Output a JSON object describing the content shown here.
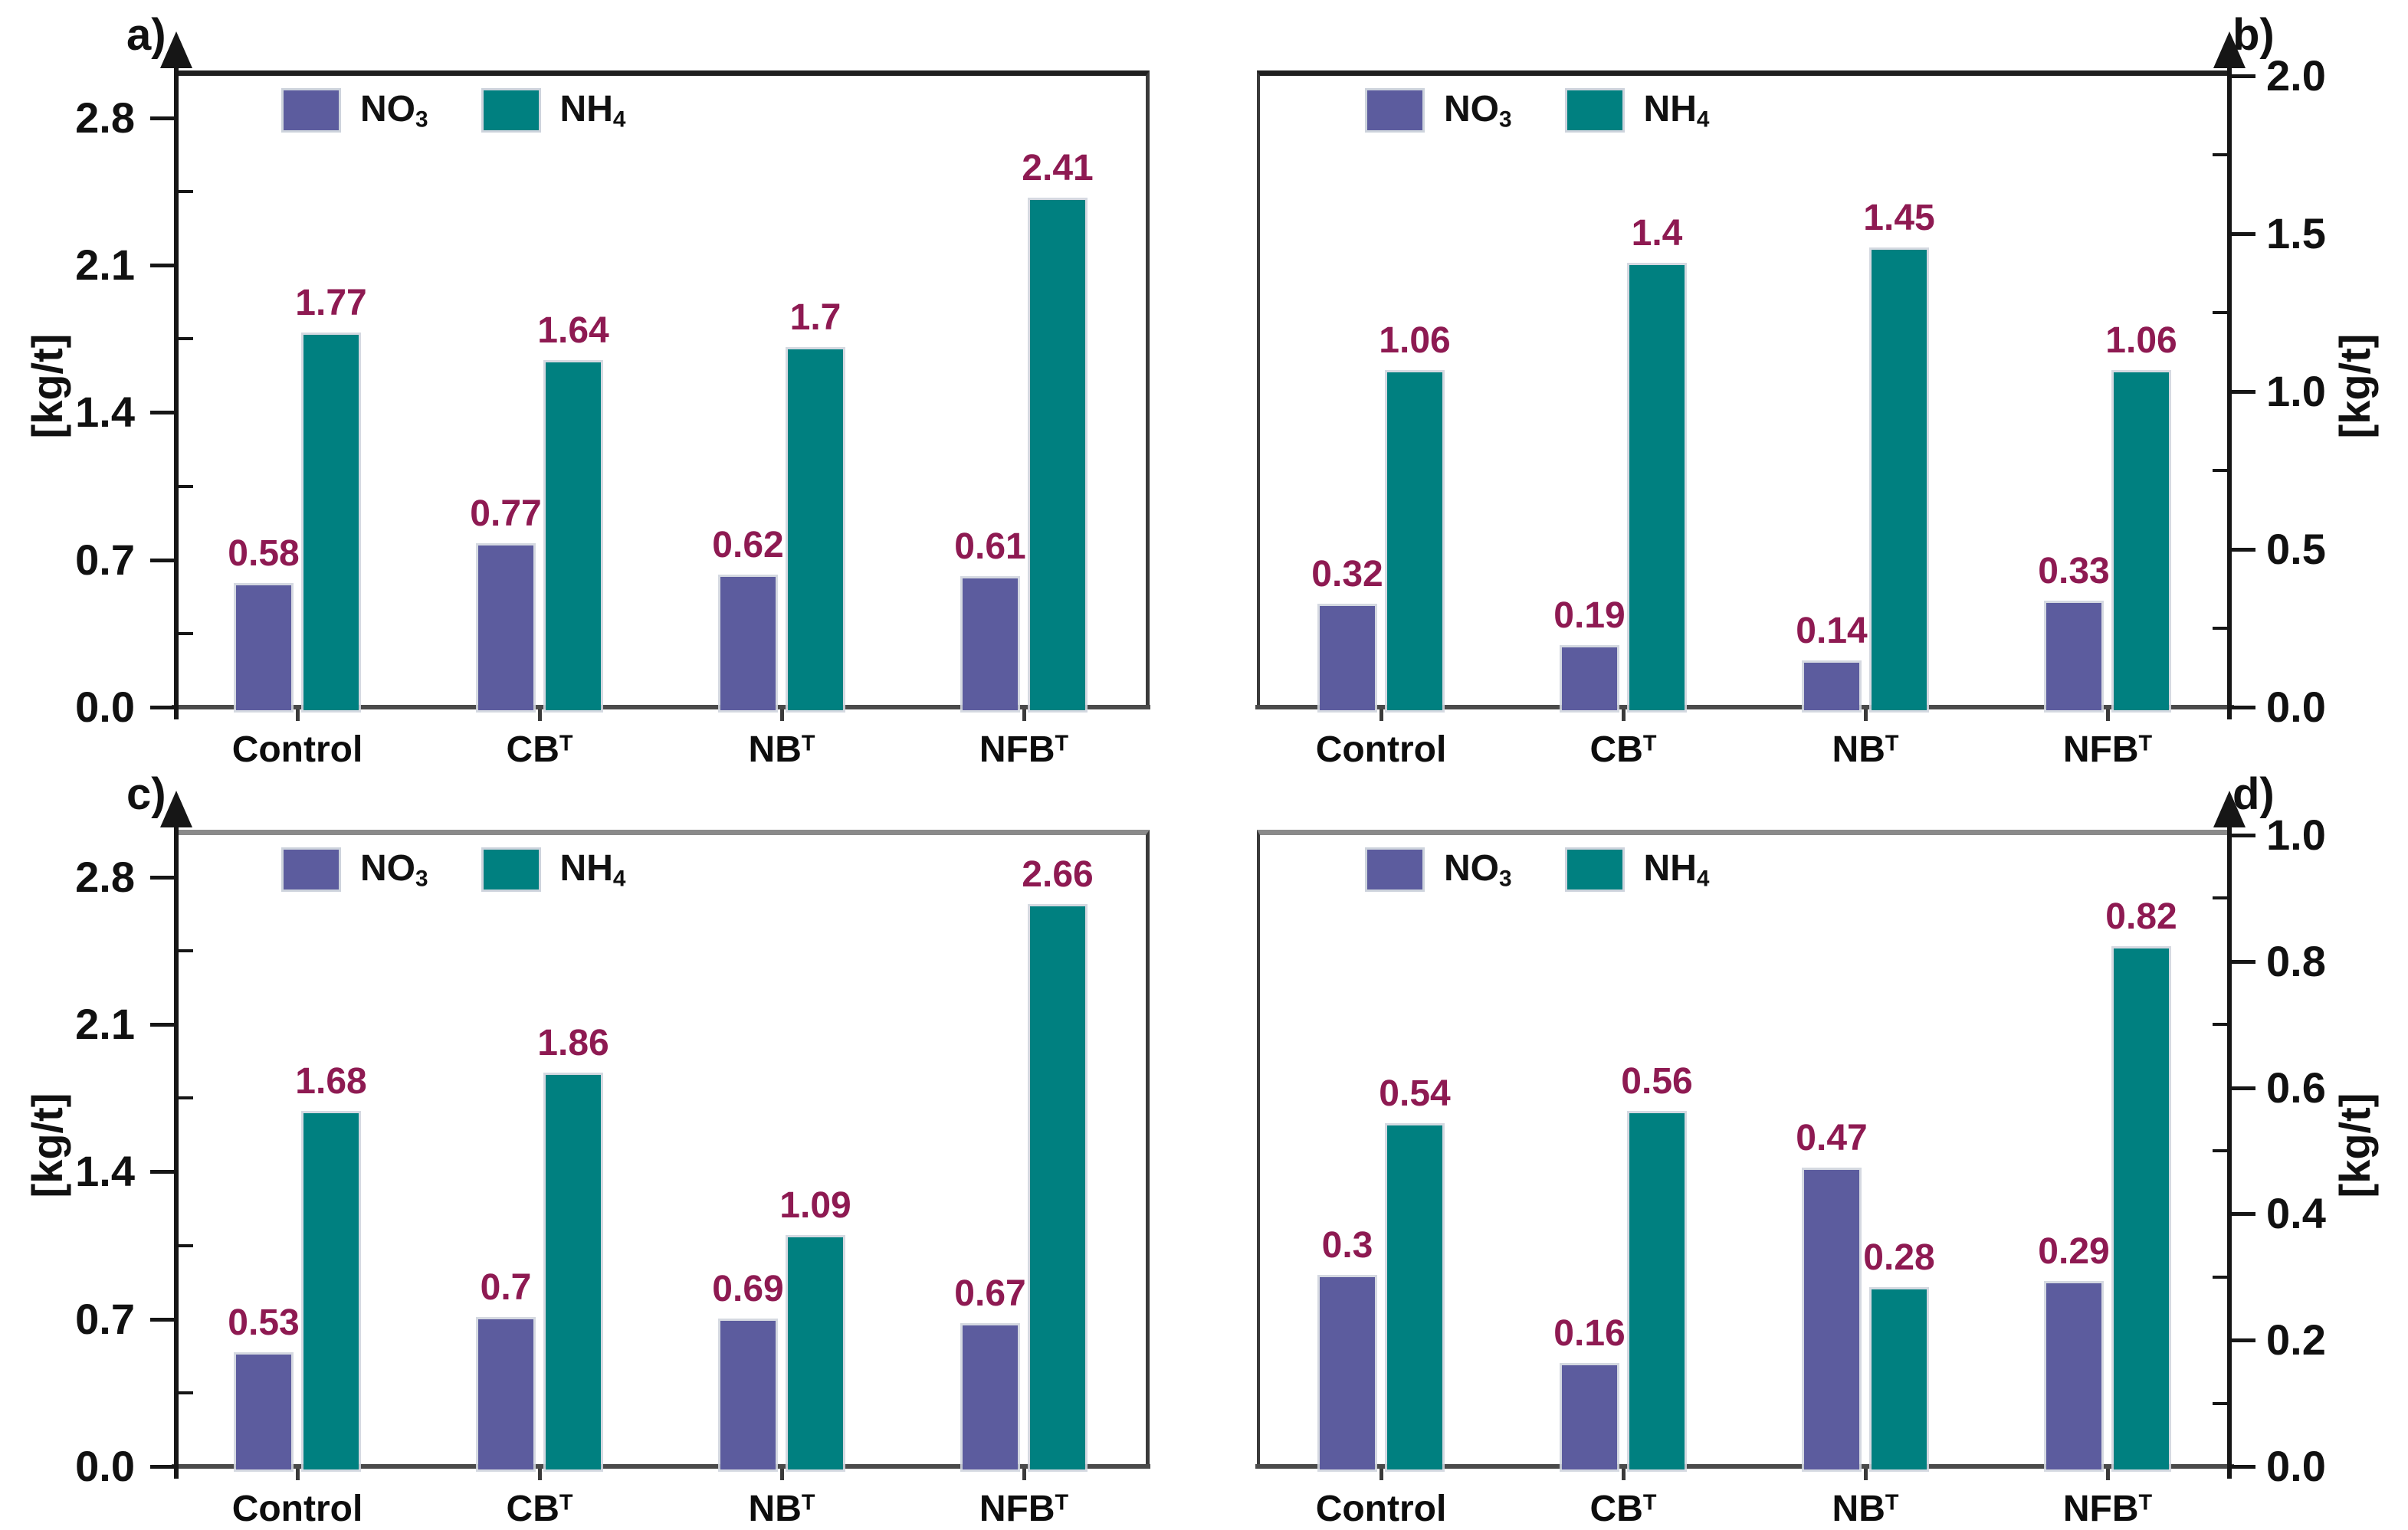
{
  "figure": {
    "ylabel": "[kg/t]",
    "categories": [
      {
        "base": "Control",
        "sup": ""
      },
      {
        "base": "CB",
        "sup": "T"
      },
      {
        "base": "NB",
        "sup": "T"
      },
      {
        "base": "NFB",
        "sup": "T"
      }
    ],
    "legend": [
      {
        "name": "NO3",
        "base": "NO",
        "sub": "3",
        "color": "#5C5C9E"
      },
      {
        "name": "NH4",
        "base": "NH",
        "sub": "4",
        "color": "#008080"
      }
    ],
    "colors": {
      "no3_bar": "#5C5C9E",
      "nh4_bar": "#008080",
      "value_label": "#8E1A52",
      "axis": "#161616",
      "top_border_dark": "#1f1f1f",
      "top_border_gray": "#8a8a8a"
    }
  },
  "chart_data": [
    {
      "panel_label": "a)",
      "type": "bar",
      "axis_side": "left",
      "ylabel": "[kg/t]",
      "categories": [
        "Control",
        "CBᵀ",
        "NBᵀ",
        "NFBᵀ"
      ],
      "series": [
        {
          "name": "NO3",
          "values": [
            0.58,
            0.77,
            0.62,
            0.61
          ]
        },
        {
          "name": "NH4",
          "values": [
            1.77,
            1.64,
            1.7,
            2.41
          ]
        }
      ],
      "ylim": [
        0,
        3.0
      ],
      "yticks": [
        {
          "v": 2.8,
          "label": "2.8"
        },
        {
          "v": 2.1,
          "label": "2.1"
        },
        {
          "v": 1.4,
          "label": "1.4"
        },
        {
          "v": 0.7,
          "label": "0.7"
        },
        {
          "v": 0.0,
          "label": "0.0"
        }
      ],
      "minor_yticks": [
        2.45,
        1.75,
        1.05,
        0.35
      ],
      "legend_position": "top-left",
      "grid": false
    },
    {
      "panel_label": "b)",
      "type": "bar",
      "axis_side": "right",
      "ylabel": "[kg/t]",
      "categories": [
        "Control",
        "CBᵀ",
        "NBᵀ",
        "NFBᵀ"
      ],
      "series": [
        {
          "name": "NO3",
          "values": [
            0.32,
            0.19,
            0.14,
            0.33
          ]
        },
        {
          "name": "NH4",
          "values": [
            1.06,
            1.4,
            1.45,
            1.06
          ]
        }
      ],
      "ylim": [
        0,
        2.0
      ],
      "yticks": [
        {
          "v": 2.0,
          "label": "2.0"
        },
        {
          "v": 1.5,
          "label": "1.5"
        },
        {
          "v": 1.0,
          "label": "1.0"
        },
        {
          "v": 0.5,
          "label": "0.5"
        },
        {
          "v": 0.0,
          "label": "0.0"
        }
      ],
      "minor_yticks": [
        1.75,
        1.25,
        0.75,
        0.25
      ],
      "legend_position": "top-left",
      "grid": false
    },
    {
      "panel_label": "c)",
      "type": "bar",
      "axis_side": "left",
      "ylabel": "[kg/t]",
      "categories": [
        "Control",
        "CBᵀ",
        "NBᵀ",
        "NFBᵀ"
      ],
      "series": [
        {
          "name": "NO3",
          "values": [
            0.53,
            0.7,
            0.69,
            0.67
          ]
        },
        {
          "name": "NH4",
          "values": [
            1.68,
            1.86,
            1.09,
            2.66
          ]
        }
      ],
      "ylim": [
        0,
        3.0
      ],
      "yticks": [
        {
          "v": 2.8,
          "label": "2.8"
        },
        {
          "v": 2.1,
          "label": "2.1"
        },
        {
          "v": 1.4,
          "label": "1.4"
        },
        {
          "v": 0.7,
          "label": "0.7"
        },
        {
          "v": 0.0,
          "label": "0.0"
        }
      ],
      "minor_yticks": [
        2.45,
        1.75,
        1.05,
        0.35
      ],
      "legend_position": "top-left",
      "grid": false
    },
    {
      "panel_label": "d)",
      "type": "bar",
      "axis_side": "right",
      "ylabel": "[kg/t]",
      "categories": [
        "Control",
        "CBᵀ",
        "NBᵀ",
        "NFBᵀ"
      ],
      "series": [
        {
          "name": "NO3",
          "values": [
            0.3,
            0.16,
            0.47,
            0.29
          ]
        },
        {
          "name": "NH4",
          "values": [
            0.54,
            0.56,
            0.28,
            0.82
          ]
        }
      ],
      "ylim": [
        0,
        1.0
      ],
      "yticks": [
        {
          "v": 1.0,
          "label": "1.0"
        },
        {
          "v": 0.8,
          "label": "0.8"
        },
        {
          "v": 0.6,
          "label": "0.6"
        },
        {
          "v": 0.4,
          "label": "0.4"
        },
        {
          "v": 0.2,
          "label": "0.2"
        },
        {
          "v": 0.0,
          "label": "0.0"
        }
      ],
      "minor_yticks": [
        0.9,
        0.7,
        0.5,
        0.3,
        0.1
      ],
      "legend_position": "top-left",
      "grid": false
    }
  ]
}
